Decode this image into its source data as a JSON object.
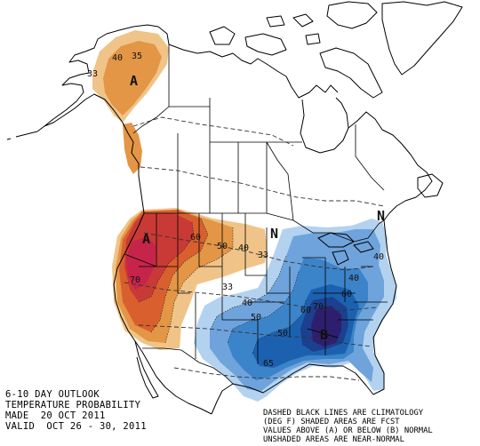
{
  "title_lines": [
    "6-10 DAY OUTLOOK",
    "TEMPERATURE PROBABILITY",
    "MADE  20 OCT 2011",
    "VALID  OCT 26 - 30, 2011"
  ],
  "legend_lines": [
    "DASHED BLACK LINES ARE CLIMATOLOGY",
    "(DEG F) SHADED AREAS ARE FCST",
    "VALUES ABOVE (A) OR BELOW (B) NORMAL",
    "UNSHADED AREAS ARE NEAR-NORMAL"
  ],
  "category_labels": {
    "alaska": "A",
    "west": "A",
    "southeast": "B",
    "east_coast": "N",
    "upper_midwest": "N"
  },
  "contour_labels": {
    "ak_33": "33",
    "ak_40": "40",
    "ak_35": "35",
    "w_60": "60",
    "w_50": "50",
    "w_40": "40",
    "w_33": "33",
    "w_70": "70",
    "c_33": "33",
    "c_40": "40",
    "c_50": "50",
    "se_50": "50",
    "se_60": "60",
    "se_60b": "60",
    "se_70": "70",
    "se_65": "65",
    "ne_40": "40",
    "ne_40b": "40"
  },
  "colors": {
    "above_33": "#f0c488",
    "above_40": "#e39645",
    "above_50": "#da5f2e",
    "above_60": "#c93a36",
    "above_70": "#c7244b",
    "below_33": "#b3d2ef",
    "below_40": "#6ea3dc",
    "below_50": "#3c84c9",
    "below_60": "#1c61af",
    "below_70": "#1c3f8e",
    "below_80": "#2e1e6e"
  }
}
